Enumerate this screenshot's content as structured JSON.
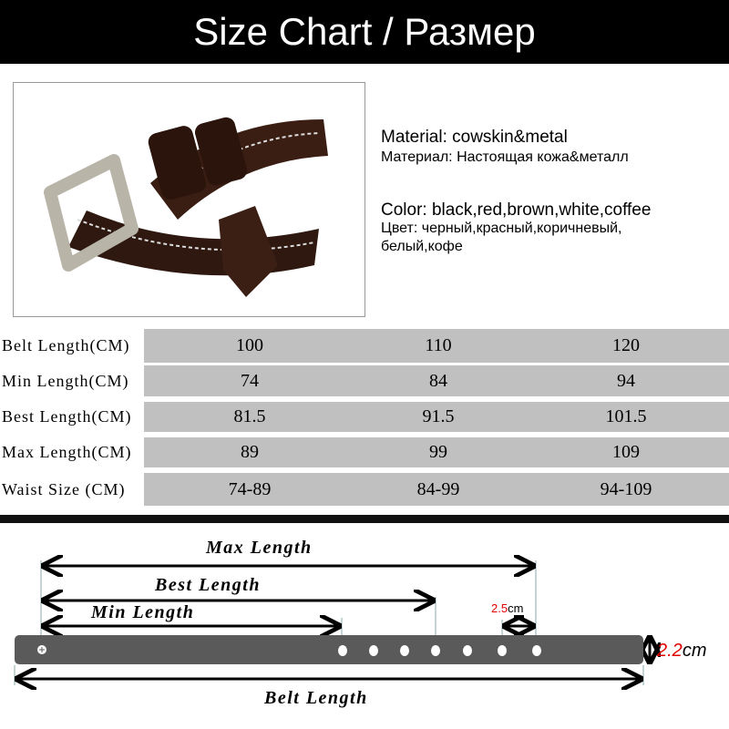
{
  "title": "Size Chart / Размер",
  "info": {
    "material_en": "Material: cowskin&metal",
    "material_ru": "Материал: Настоящая кожа&металл",
    "color_en": "Color: black,red,brown,white,coffee",
    "color_ru_1": "Цвет: черный,красный,коричневый,",
    "color_ru_2": "белый,кофе"
  },
  "table": {
    "rows": [
      {
        "label": "Belt Length(CM)",
        "values": [
          "100",
          "110",
          "120"
        ]
      },
      {
        "label": "Min Length(CM)",
        "values": [
          "74",
          "84",
          "94"
        ]
      },
      {
        "label": "Best Length(CM)",
        "values": [
          "81.5",
          "91.5",
          "101.5"
        ]
      },
      {
        "label": "Max Length(CM)",
        "values": [
          "89",
          "99",
          "109"
        ]
      },
      {
        "label": "Waist Size (CM)",
        "values": [
          "74-89",
          "84-99",
          "94-109"
        ]
      }
    ]
  },
  "diagram": {
    "max_length": "Max Length",
    "best_length": "Best Length",
    "min_length": "Min Length",
    "belt_length": "Belt Length",
    "hole_spacing_value": "2.5",
    "hole_spacing_unit": "cm",
    "width_value": "2.2",
    "width_unit": "cm",
    "belt_color": "#5a5a5a",
    "accent_color": "#e00000"
  }
}
